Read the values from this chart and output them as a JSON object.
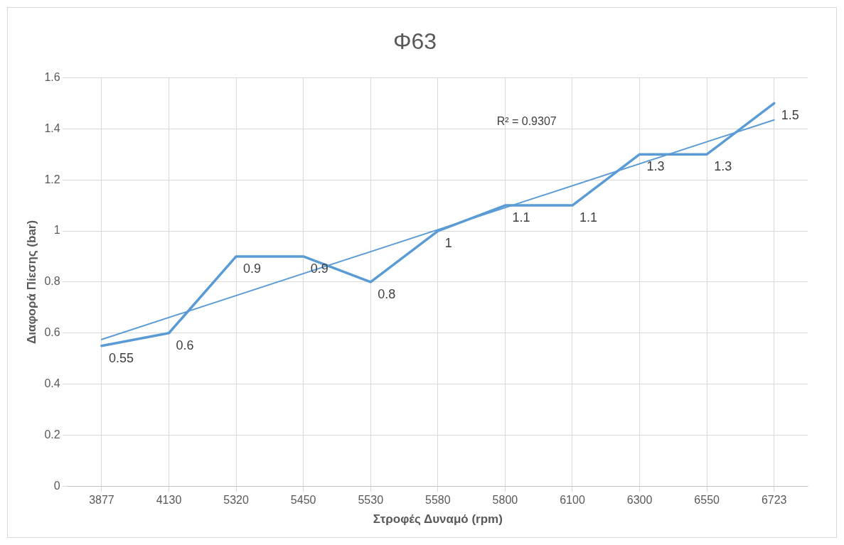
{
  "chart_data": {
    "type": "line",
    "title": "Φ63",
    "xlabel": "Στροφές Δυναμό (rpm)",
    "ylabel": "Διαφορά Πίεσης (bar)",
    "categories": [
      "3877",
      "4130",
      "5320",
      "5450",
      "5530",
      "5580",
      "5800",
      "6100",
      "6300",
      "6550",
      "6723"
    ],
    "series": [
      {
        "color": "#5b9bd5",
        "values": [
          0.55,
          0.6,
          0.9,
          0.9,
          0.8,
          1,
          1.1,
          1.1,
          1.3,
          1.3,
          1.5
        ],
        "data_labels": true
      },
      {
        "type": "line",
        "color": "#5b9bd5",
        "values": [
          0.575,
          null,
          null,
          null,
          null,
          null,
          null,
          null,
          null,
          null,
          1.435
        ]
      }
    ],
    "annotations": [
      "R² = 0.9307"
    ],
    "ylim": [
      0,
      1.6
    ],
    "yticks": [
      0,
      0.2,
      0.4,
      0.6,
      0.8,
      1,
      1.2,
      1.4,
      1.6
    ],
    "grid": true,
    "legend": false,
    "marker": "none",
    "line_style": "solid"
  }
}
